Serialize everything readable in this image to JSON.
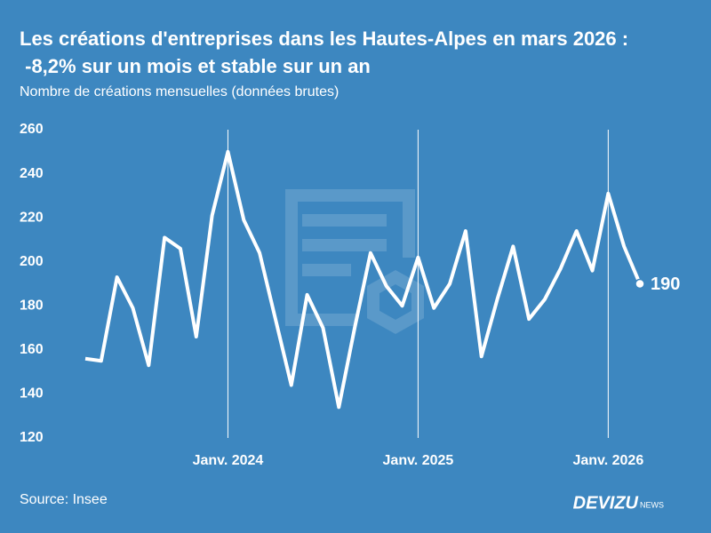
{
  "chart_data": {
    "type": "line",
    "title": "Les créations d'entreprises dans les Hautes-Alpes en mars 2026 : -8,2% sur un mois et stable sur un an",
    "subtitle": "Nombre de créations mensuelles (données brutes)",
    "source": "Source: Insee",
    "brand": "DEVIZU",
    "brand_suffix": "NEWS",
    "categories": [
      null,
      null,
      null,
      null,
      null,
      null,
      null,
      null,
      null,
      "Janv. 2024",
      null,
      null,
      null,
      null,
      null,
      null,
      null,
      null,
      null,
      null,
      null,
      "Janv. 2025",
      null,
      null,
      null,
      null,
      null,
      null,
      null,
      null,
      null,
      null,
      null,
      "Janv. 2026",
      null,
      null
    ],
    "series": [
      {
        "name": "Créations",
        "color": "#ffffff",
        "values": [
          156,
          155,
          193,
          179,
          153,
          211,
          206,
          166,
          221,
          250,
          219,
          204,
          174,
          144,
          185,
          170,
          134,
          170,
          204,
          189,
          180,
          202,
          179,
          190,
          214,
          157,
          183,
          207,
          174,
          183,
          197,
          214,
          196,
          231,
          207,
          190
        ]
      }
    ],
    "ylim": [
      120,
      260
    ],
    "yticks": [
      120,
      140,
      160,
      180,
      200,
      220,
      240,
      260
    ]
  }
}
